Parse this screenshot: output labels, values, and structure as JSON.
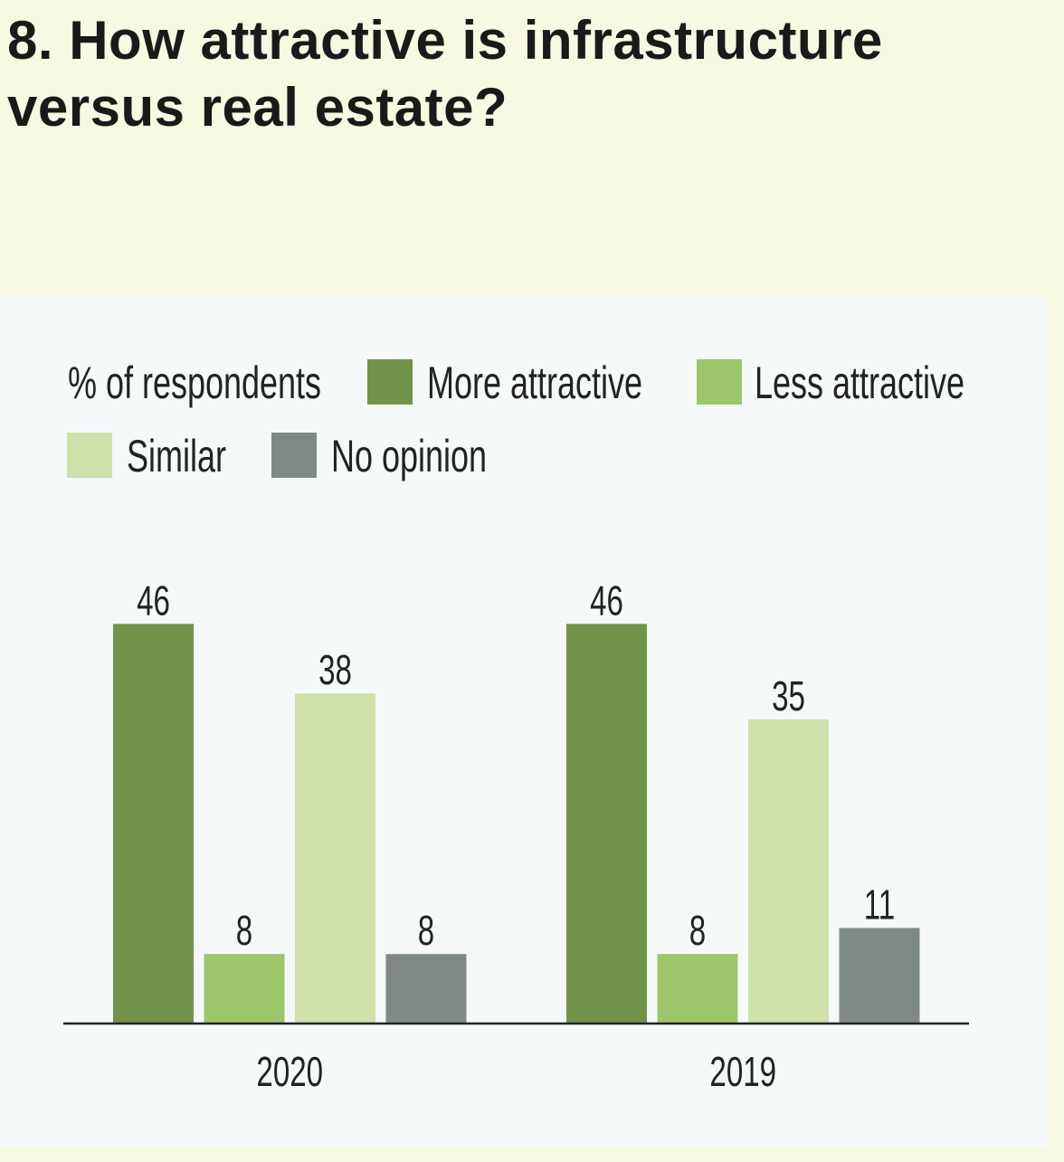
{
  "chart_data": {
    "type": "bar",
    "title": "8. How attractive is infrastructure versus real estate?",
    "ylabel": "% of respondents",
    "categories": [
      "2020",
      "2019"
    ],
    "series": [
      {
        "name": "More attractive",
        "color": "#72934a",
        "values": [
          46,
          46
        ]
      },
      {
        "name": "Less attractive",
        "color": "#9dc66a",
        "values": [
          8,
          8
        ]
      },
      {
        "name": "Similar",
        "color": "#cfe0aa",
        "values": [
          38,
          35
        ]
      },
      {
        "name": "No opinion",
        "color": "#7f8985",
        "values": [
          8,
          11
        ]
      }
    ],
    "ylim": [
      0,
      50
    ],
    "grid": false,
    "legend": "top",
    "data_labels": true
  }
}
